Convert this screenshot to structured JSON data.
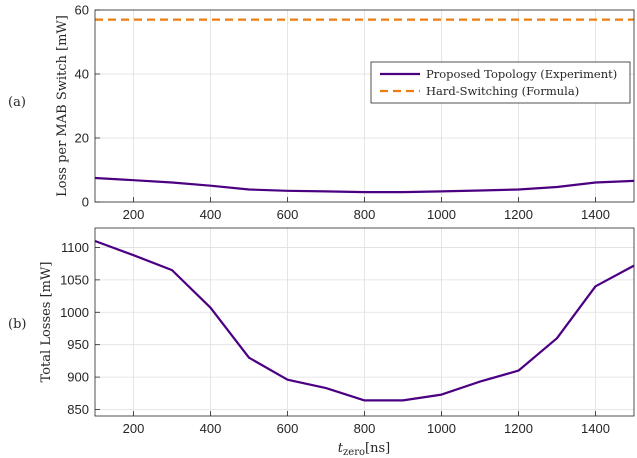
{
  "chart_data": [
    {
      "panel_label": "(a)",
      "type": "line",
      "xlabel": "",
      "ylabel": "Loss per MAB Switch [mW]",
      "xlim": [
        100,
        1500
      ],
      "ylim": [
        0,
        60
      ],
      "xticks": [
        200,
        400,
        600,
        800,
        1000,
        1200,
        1400
      ],
      "yticks": [
        0,
        20,
        40,
        60
      ],
      "grid": true,
      "legend_position": "right",
      "series": [
        {
          "name": "Proposed Topology (Experiment)",
          "color": "#4b0082",
          "style": "solid",
          "x": [
            100,
            200,
            300,
            400,
            500,
            600,
            700,
            800,
            900,
            1000,
            1100,
            1200,
            1300,
            1400,
            1500
          ],
          "y": [
            7.5,
            6.8,
            6.1,
            5.1,
            3.9,
            3.5,
            3.3,
            3.1,
            3.1,
            3.3,
            3.6,
            3.9,
            4.7,
            6.1,
            6.6
          ]
        },
        {
          "name": "Hard-Switching (Formula)",
          "color": "#ee7d10",
          "style": "dashed",
          "x": [
            100,
            1500
          ],
          "y": [
            57,
            57
          ]
        }
      ]
    },
    {
      "panel_label": "(b)",
      "type": "line",
      "xlabel_main": "t",
      "xlabel_sub": "zero",
      "xlabel_unit": "[ns]",
      "ylabel": "Total Losses [mW]",
      "xlim": [
        100,
        1500
      ],
      "ylim": [
        840,
        1130
      ],
      "xticks": [
        200,
        400,
        600,
        800,
        1000,
        1200,
        1400
      ],
      "yticks": [
        850,
        900,
        950,
        1000,
        1050,
        1100
      ],
      "grid": true,
      "series": [
        {
          "color": "#4b0082",
          "style": "solid",
          "x": [
            100,
            200,
            300,
            400,
            500,
            600,
            700,
            800,
            900,
            1000,
            1100,
            1200,
            1300,
            1400,
            1500
          ],
          "y": [
            1110,
            1088,
            1065,
            1007,
            930,
            896,
            883,
            864,
            864,
            873,
            893,
            910,
            960,
            1040,
            1072
          ]
        }
      ]
    }
  ]
}
